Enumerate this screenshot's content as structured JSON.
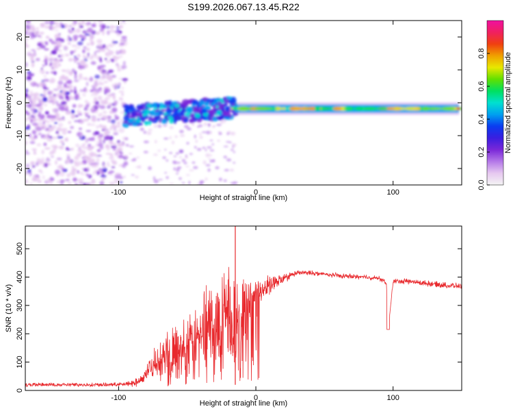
{
  "title": "S199.2026.067.13.45.R22",
  "colors": {
    "snr_line": "#e8282c",
    "frame": "#000000"
  },
  "chart_data": [
    {
      "type": "heatmap",
      "name": "spectrogram",
      "xlabel": "Height of straight line (km)",
      "ylabel": "Frequency (Hz)",
      "xlim": [
        -168,
        150
      ],
      "ylim": [
        -25,
        25
      ],
      "x_ticks": [
        "-100",
        "0",
        "100"
      ],
      "x_tick_values": [
        -100,
        0,
        100
      ],
      "y_ticks": [
        "-20",
        "-10",
        "0",
        "10",
        "20"
      ],
      "y_tick_values": [
        -20,
        -10,
        0,
        10,
        20
      ],
      "colorbar": {
        "label": "Normalized spectral amplitude",
        "range": [
          0,
          1
        ],
        "ticks": [
          "0.0",
          "0.2",
          "0.4",
          "0.6",
          "0.8"
        ],
        "tick_values": [
          0.0,
          0.2,
          0.4,
          0.6,
          0.8
        ],
        "colormap": [
          "#f4f4f4",
          "#e6c8f0",
          "#b478e8",
          "#7a28d8",
          "#3a1ee0",
          "#0a3cf0",
          "#00a0f0",
          "#00e0d0",
          "#00e060",
          "#60e000",
          "#e8e800",
          "#f0a000",
          "#f04010",
          "#f02060",
          "#f010a0"
        ]
      },
      "features": {
        "noise_region_km": [
          -168,
          -95
        ],
        "transition_region_km": [
          -95,
          -15
        ],
        "carrier_frequency_hz": -1.8,
        "carrier_region_km": [
          -15,
          148
        ]
      }
    },
    {
      "type": "line",
      "name": "snr",
      "xlabel": "Height of straight line (km)",
      "ylabel": "SNR (10 * v/v)",
      "xlim": [
        -168,
        150
      ],
      "ylim": [
        0,
        580
      ],
      "x_ticks": [
        "-100",
        "0",
        "100"
      ],
      "x_tick_values": [
        -100,
        0,
        100
      ],
      "y_ticks": [
        "0",
        "100",
        "200",
        "300",
        "400",
        "500"
      ],
      "y_tick_values": [
        0,
        100,
        200,
        300,
        400,
        500
      ],
      "series": [
        {
          "name": "SNR",
          "x": [
            -168,
            -150,
            -130,
            -110,
            -95,
            -85,
            -80,
            -75,
            -70,
            -65,
            -60,
            -55,
            -50,
            -45,
            -40,
            -35,
            -30,
            -25,
            -20,
            -15,
            -10,
            -5,
            0,
            5,
            10,
            15,
            20,
            25,
            30,
            40,
            50,
            60,
            70,
            80,
            90,
            95,
            97,
            100,
            110,
            120,
            130,
            140,
            150
          ],
          "y": [
            20,
            20,
            20,
            20,
            22,
            30,
            60,
            95,
            120,
            140,
            160,
            175,
            185,
            205,
            220,
            240,
            255,
            290,
            300,
            250,
            280,
            320,
            345,
            360,
            370,
            380,
            395,
            405,
            415,
            415,
            410,
            405,
            402,
            400,
            395,
            380,
            240,
            385,
            385,
            380,
            375,
            370,
            368
          ],
          "spread": [
            8,
            8,
            8,
            8,
            8,
            20,
            40,
            60,
            80,
            90,
            100,
            110,
            110,
            120,
            130,
            150,
            170,
            180,
            200,
            170,
            130,
            90,
            70,
            50,
            40,
            30,
            20,
            15,
            10,
            10,
            10,
            10,
            10,
            10,
            10,
            10,
            0,
            10,
            12,
            12,
            12,
            12,
            12
          ],
          "color": "#e8282c"
        }
      ]
    }
  ]
}
